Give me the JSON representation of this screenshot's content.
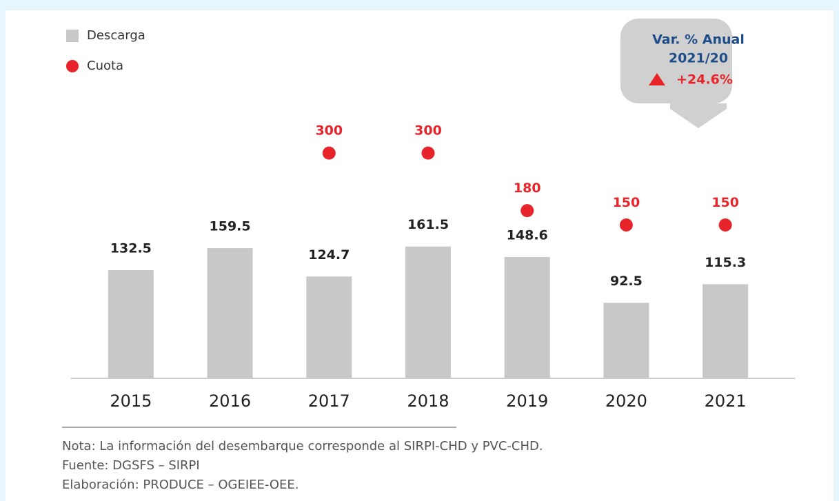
{
  "chart_data": {
    "type": "bar",
    "categories": [
      "2015",
      "2016",
      "2017",
      "2018",
      "2019",
      "2020",
      "2021"
    ],
    "series": [
      {
        "name": "Descarga",
        "type": "bar",
        "color": "#c8c8c8",
        "values": [
          132.5,
          159.5,
          124.7,
          161.5,
          148.6,
          92.5,
          115.3
        ]
      },
      {
        "name": "Cuota",
        "type": "scatter",
        "color": "#e8242b",
        "axis": "y2",
        "values": [
          null,
          null,
          300,
          300,
          180,
          150,
          150
        ]
      }
    ],
    "ylim": [
      0,
      320
    ],
    "y2lim": [
      -170,
      375
    ],
    "callout": {
      "title": "Var. % Anual",
      "period": "2021/20",
      "change": "+24.6%"
    },
    "notes": [
      "Nota: La información del desembarque corresponde al SIRPI-CHD y PVC-CHD.",
      "Fuente: DGSFS – SIRPI",
      "Elaboración: PRODUCE – OGEIEE-OEE."
    ]
  }
}
